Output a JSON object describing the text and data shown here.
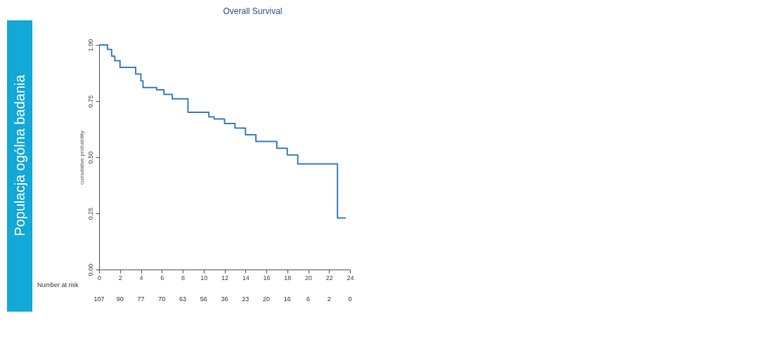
{
  "chart_data": {
    "type": "step",
    "title": "Overall Survival",
    "subtitle": "Populacja ogólna badania",
    "ylabel": "cumulative probability",
    "x": [
      0,
      0.8,
      1.2,
      1.5,
      2,
      3.5,
      4,
      4.2,
      5.5,
      6.2,
      7,
      8.5,
      10.5,
      11,
      12,
      13,
      14,
      15,
      17,
      18,
      19,
      22.8,
      23.6
    ],
    "series": [
      {
        "color": "#3a7fc1",
        "values": [
          1.0,
          0.98,
          0.95,
          0.93,
          0.9,
          0.87,
          0.84,
          0.81,
          0.8,
          0.78,
          0.76,
          0.7,
          0.68,
          0.67,
          0.65,
          0.63,
          0.6,
          0.57,
          0.54,
          0.51,
          0.47,
          0.23,
          0.23
        ]
      }
    ],
    "xlim": [
      0,
      24
    ],
    "xticks": [
      0,
      2,
      4,
      6,
      8,
      10,
      12,
      14,
      16,
      18,
      20,
      22,
      24
    ],
    "ylim": [
      0,
      1
    ],
    "yticks": [
      {
        "value": 0,
        "label": "0.00"
      },
      {
        "value": 0.25,
        "label": "0.25"
      },
      {
        "value": 0.5,
        "label": "0.50"
      },
      {
        "value": 0.75,
        "label": "0.75"
      },
      {
        "value": 1,
        "label": "1.00"
      }
    ],
    "annotations": [
      "Number at risk",
      "107",
      "90",
      "77",
      "70",
      "63",
      "56",
      "36",
      "23",
      "20",
      "16",
      "6",
      "2",
      "0"
    ],
    "grid": false,
    "marker": "none",
    "line_style": "solid"
  }
}
